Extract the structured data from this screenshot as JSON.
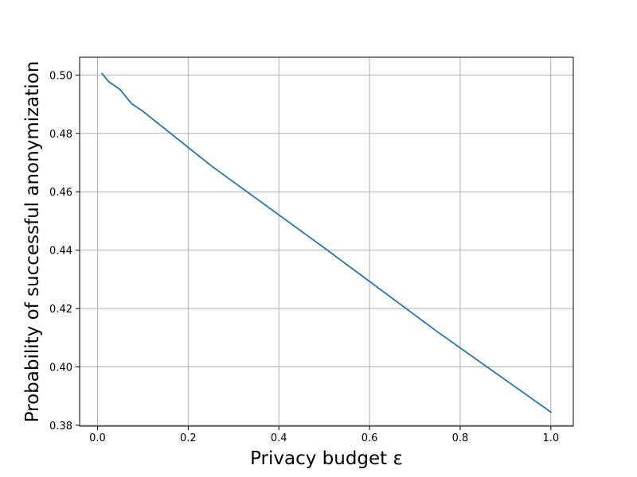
{
  "chart_data": {
    "type": "line",
    "title": "",
    "xlabel": "Privacy budget ε",
    "ylabel": "Probability of successful anonymization",
    "xlim": [
      -0.0395,
      1.0495
    ],
    "ylim": [
      0.3797,
      0.5061
    ],
    "grid": true,
    "xticks": [
      0.0,
      0.2,
      0.4,
      0.6,
      0.8,
      1.0
    ],
    "xtick_labels": [
      "0.0",
      "0.2",
      "0.4",
      "0.6",
      "0.8",
      "1.0"
    ],
    "yticks": [
      0.38,
      0.4,
      0.42,
      0.44,
      0.46,
      0.48,
      0.5
    ],
    "ytick_labels": [
      "0.38",
      "0.40",
      "0.42",
      "0.44",
      "0.46",
      "0.48",
      "0.50"
    ],
    "colors": {
      "line": "#1f77b4",
      "grid": "#b0b0b0",
      "axes": "#000000"
    },
    "series": [
      {
        "x": [
          0.01,
          0.025,
          0.05,
          0.075,
          0.1,
          0.25,
          0.5,
          0.75,
          1.0
        ],
        "values": [
          0.5005,
          0.4977,
          0.495,
          0.4902,
          0.4876,
          0.469,
          0.4408,
          0.412,
          0.3845
        ]
      }
    ]
  }
}
